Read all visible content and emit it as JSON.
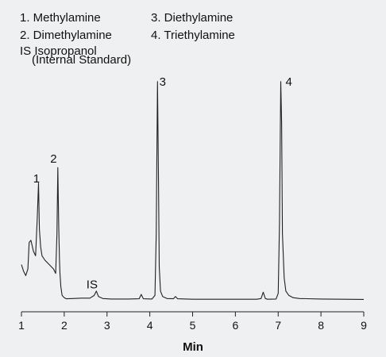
{
  "chart_data": {
    "type": "line",
    "title": "",
    "xlabel": "Min",
    "ylabel": "",
    "xlim": [
      1,
      9
    ],
    "ylim": [
      0,
      100
    ],
    "x_ticks": [
      "1",
      "2",
      "3",
      "4",
      "5",
      "6",
      "7",
      "8",
      "9"
    ],
    "grid": false,
    "legend": {
      "left": [
        "1. Methylamine",
        "2. Dimethylamine",
        "IS Isopropanol",
        "(Internal Standard)"
      ],
      "right": [
        "3. Diethylamine",
        "4. Triethylamine"
      ]
    },
    "peak_labels": [
      {
        "label": "1",
        "x": 1.35,
        "y": 55
      },
      {
        "label": "2",
        "x": 1.75,
        "y": 64
      },
      {
        "label": "IS",
        "x": 2.65,
        "y": 7
      },
      {
        "label": "3",
        "x": 4.3,
        "y": 99
      },
      {
        "label": "4",
        "x": 7.25,
        "y": 99
      }
    ],
    "series": [
      {
        "x": [
          1.0,
          1.05,
          1.1,
          1.15,
          1.18,
          1.22,
          1.28,
          1.33,
          1.37,
          1.4,
          1.42,
          1.45,
          1.48,
          1.55,
          1.65,
          1.75,
          1.8,
          1.83,
          1.85,
          1.87,
          1.89,
          1.9,
          1.92,
          1.95,
          2.0,
          2.05,
          2.2,
          2.4,
          2.6,
          2.7,
          2.75,
          2.8,
          2.9,
          3.1,
          3.5,
          3.75,
          3.8,
          3.85,
          4.05,
          4.12,
          4.15,
          4.18,
          4.2,
          4.22,
          4.25,
          4.3,
          4.4,
          4.55,
          4.6,
          4.65,
          5.0,
          5.5,
          6.0,
          6.5,
          6.6,
          6.65,
          6.7,
          6.75,
          6.95,
          7.0,
          7.03,
          7.06,
          7.08,
          7.1,
          7.14,
          7.18,
          7.25,
          7.35,
          7.5,
          8.0,
          8.5,
          9.0
        ],
        "y": [
          16,
          13,
          11,
          14,
          26,
          27,
          22,
          20,
          37,
          53,
          32,
          24,
          20,
          18,
          16,
          14,
          12,
          30,
          60,
          34,
          18,
          12,
          6,
          2,
          1,
          0.5,
          0.6,
          0.8,
          0.8,
          2,
          4,
          1.5,
          0.6,
          0.4,
          0.4,
          0.5,
          2.5,
          0.5,
          0.4,
          2,
          30,
          99,
          60,
          15,
          4,
          1.5,
          0.6,
          0.5,
          1.5,
          0.5,
          0.3,
          0.3,
          0.3,
          0.3,
          0.6,
          3.5,
          0.6,
          0.3,
          0.4,
          3,
          35,
          99,
          80,
          30,
          10,
          4,
          2,
          1,
          0.6,
          0.4,
          0.3,
          0.2
        ]
      }
    ]
  }
}
